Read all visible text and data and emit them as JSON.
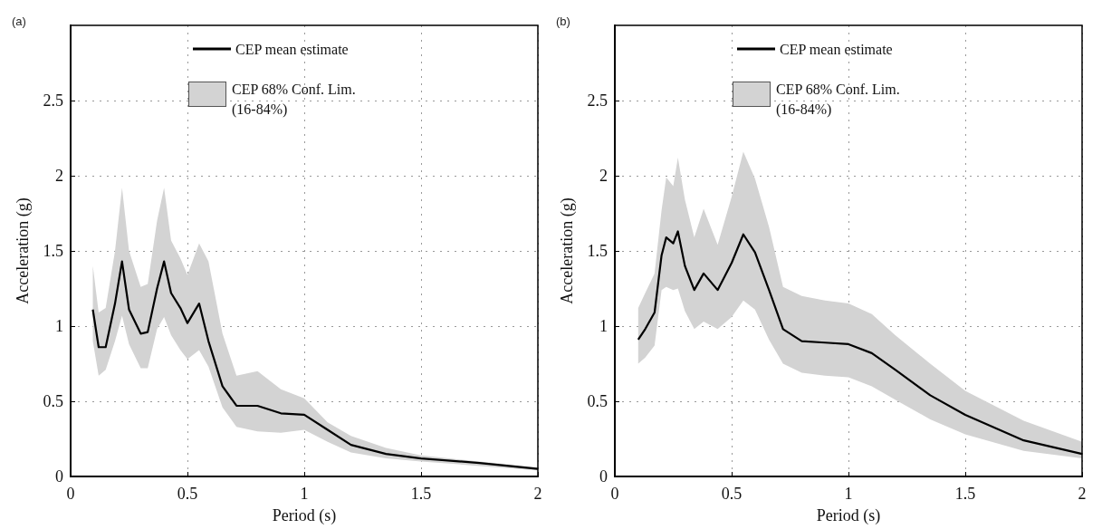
{
  "chart_data": [
    {
      "type": "line",
      "title": "(a)",
      "xlabel": "Period (s)",
      "ylabel": "Acceleration (g)",
      "annotations": [
        "CEP 68% Conf. Lim. (16-84%)"
      ],
      "x": [
        0.095,
        0.12,
        0.15,
        0.19,
        0.22,
        0.25,
        0.3,
        0.33,
        0.37,
        0.4,
        0.43,
        0.47,
        0.5,
        0.55,
        0.59,
        0.65,
        0.71,
        0.8,
        0.9,
        1.0,
        1.1,
        1.2,
        1.35,
        1.5,
        1.75,
        2.0
      ],
      "series": [
        {
          "name": "CEP mean estimate",
          "color": "#000000",
          "values": [
            1.11,
            0.86,
            0.86,
            1.15,
            1.43,
            1.11,
            0.95,
            0.96,
            1.25,
            1.43,
            1.22,
            1.12,
            1.02,
            1.15,
            0.9,
            0.6,
            0.47,
            0.47,
            0.42,
            0.41,
            0.31,
            0.21,
            0.15,
            0.12,
            0.09,
            0.05
          ],
          "upper": [
            1.4,
            1.09,
            1.12,
            1.5,
            1.92,
            1.5,
            1.26,
            1.28,
            1.7,
            1.92,
            1.57,
            1.45,
            1.34,
            1.55,
            1.43,
            0.95,
            0.67,
            0.7,
            0.58,
            0.52,
            0.36,
            0.27,
            0.19,
            0.14,
            0.1,
            0.06
          ],
          "lower": [
            0.9,
            0.67,
            0.71,
            0.9,
            1.07,
            0.88,
            0.72,
            0.72,
            0.98,
            1.06,
            0.94,
            0.84,
            0.78,
            0.84,
            0.73,
            0.46,
            0.33,
            0.3,
            0.29,
            0.31,
            0.23,
            0.16,
            0.12,
            0.1,
            0.07,
            0.04
          ]
        }
      ],
      "xlim": [
        0,
        2
      ],
      "xticks": [
        0,
        0.5,
        1,
        1.5,
        2
      ],
      "ylim": [
        0,
        3
      ],
      "yticks": [
        0,
        0.5,
        1,
        1.5,
        2,
        2.5
      ],
      "grid": true,
      "legend": "top",
      "marker": "none",
      "line_style": "solid"
    },
    {
      "type": "line",
      "title": "(b)",
      "xlabel": "Period (s)",
      "ylabel": "Acceleration (g)",
      "annotations": [
        "CEP 68% Conf. Lim. (16-84%)"
      ],
      "x": [
        0.1,
        0.13,
        0.17,
        0.2,
        0.22,
        0.25,
        0.27,
        0.3,
        0.34,
        0.38,
        0.44,
        0.5,
        0.55,
        0.6,
        0.66,
        0.72,
        0.8,
        0.9,
        1.0,
        1.1,
        1.2,
        1.35,
        1.5,
        1.75,
        2.0
      ],
      "series": [
        {
          "name": "CEP mean estimate",
          "color": "#000000",
          "values": [
            0.91,
            0.98,
            1.09,
            1.47,
            1.59,
            1.55,
            1.63,
            1.4,
            1.24,
            1.35,
            1.24,
            1.42,
            1.61,
            1.49,
            1.24,
            0.98,
            0.9,
            0.89,
            0.88,
            0.82,
            0.71,
            0.54,
            0.41,
            0.24,
            0.15
          ],
          "upper": [
            1.12,
            1.22,
            1.35,
            1.77,
            1.99,
            1.93,
            2.12,
            1.84,
            1.59,
            1.78,
            1.54,
            1.86,
            2.16,
            1.98,
            1.66,
            1.26,
            1.2,
            1.17,
            1.15,
            1.08,
            0.94,
            0.75,
            0.57,
            0.37,
            0.23
          ],
          "lower": [
            0.75,
            0.79,
            0.87,
            1.24,
            1.26,
            1.24,
            1.25,
            1.1,
            0.98,
            1.03,
            0.98,
            1.06,
            1.17,
            1.11,
            0.91,
            0.75,
            0.69,
            0.67,
            0.66,
            0.6,
            0.51,
            0.38,
            0.28,
            0.17,
            0.12
          ]
        }
      ],
      "xlim": [
        0,
        2
      ],
      "xticks": [
        0,
        0.5,
        1,
        1.5,
        2
      ],
      "ylim": [
        0,
        3
      ],
      "yticks": [
        0,
        0.5,
        1,
        1.5,
        2,
        2.5
      ],
      "grid": true,
      "legend": "top",
      "marker": "none",
      "line_style": "solid"
    }
  ]
}
